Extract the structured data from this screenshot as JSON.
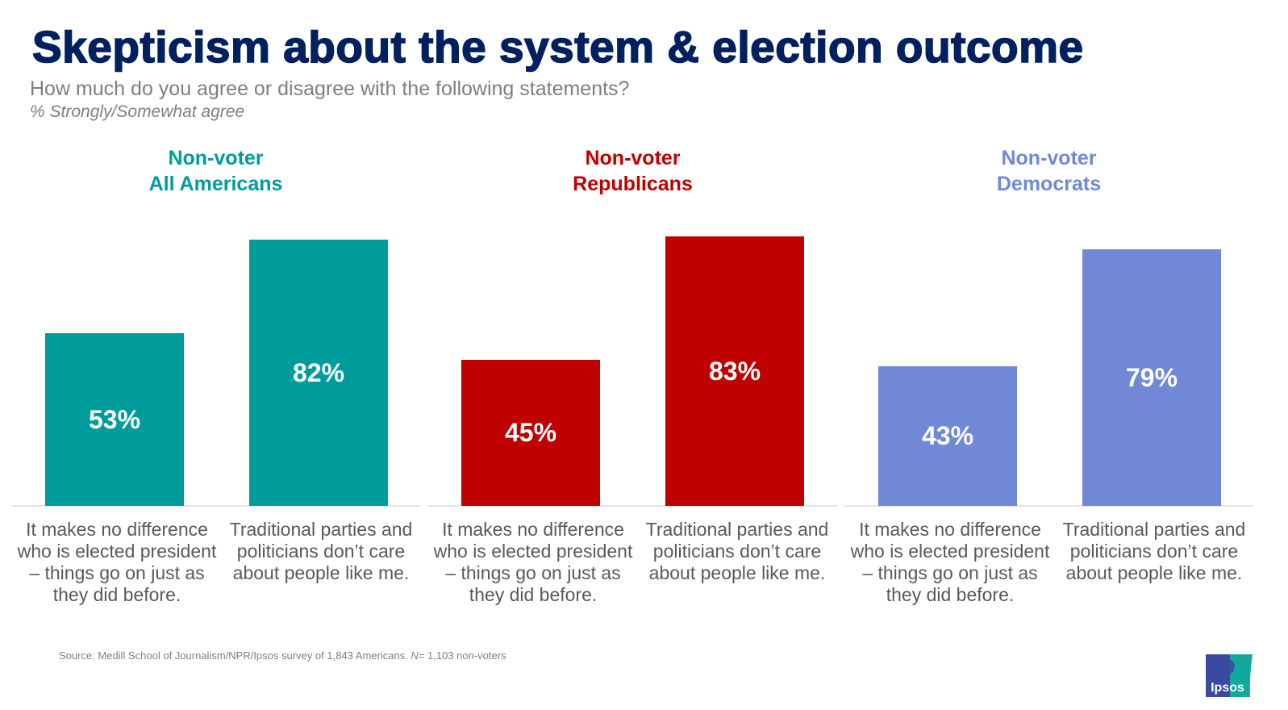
{
  "header": {
    "title": "Skepticism about the system & election outcome",
    "subtitle": "How much do you agree or disagree with the following statements?",
    "note": "% Strongly/Somewhat agree"
  },
  "footer": {
    "source_prefix": "Source: Medill School of Journalism/NPR/Ipsos survey of 1,843 Americans. ",
    "n_label": "N",
    "n_suffix": "= 1,103 non-voters",
    "logo_text": "Ipsos"
  },
  "chart_data": {
    "type": "bar",
    "title": "Skepticism about the system & election outcome",
    "subtitle": "How much do you agree or disagree with the following statements?",
    "ylabel": "% Strongly/Somewhat agree",
    "ylim": [
      0,
      100
    ],
    "grid": false,
    "categories": [
      "It makes no difference who is elected president – things go on just as they did before.",
      "Traditional parties and politicians don’t care about people like me."
    ],
    "panels": [
      {
        "name_line1": "Non-voter",
        "name_line2": "All Americans",
        "color": "#009C9C",
        "values": [
          53,
          82
        ],
        "labels": [
          "53%",
          "82%"
        ]
      },
      {
        "name_line1": "Non-voter",
        "name_line2": "Republicans",
        "color": "#C00000",
        "values": [
          45,
          83
        ],
        "labels": [
          "45%",
          "83%"
        ]
      },
      {
        "name_line1": "Non-voter",
        "name_line2": "Democrats",
        "color": "#7088D6",
        "values": [
          43,
          79
        ],
        "labels": [
          "43%",
          "79%"
        ]
      }
    ]
  }
}
